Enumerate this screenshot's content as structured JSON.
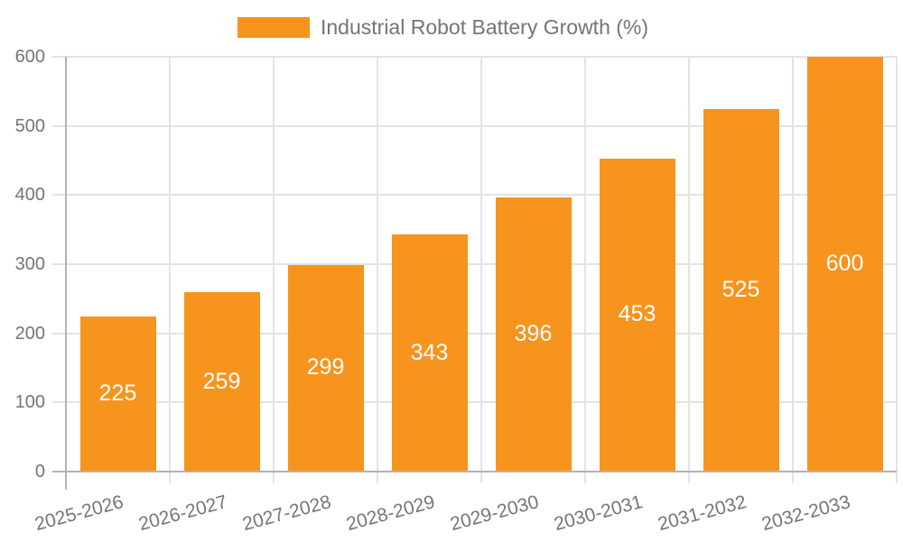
{
  "chart_data": {
    "type": "bar",
    "title": "Industrial Robot Battery Growth (%)",
    "legend": {
      "label": "Industrial Robot Battery Growth (%)",
      "position": "top"
    },
    "categories": [
      "2025-2026",
      "2026-2027",
      "2027-2028",
      "2028-2029",
      "2029-2030",
      "2030-2031",
      "2031-2032",
      "2032-2033"
    ],
    "values": [
      225,
      259,
      299,
      343,
      396,
      453,
      525,
      600
    ],
    "value_labels_shown": true,
    "xlabel": "",
    "ylabel": "",
    "ylim": [
      0,
      600
    ],
    "yticks": [
      0,
      100,
      200,
      300,
      400,
      500,
      600
    ],
    "grid": "horizontal-and-vertical",
    "colors": {
      "bar": "#F7941E",
      "value_label": "#ffffff",
      "axis_text": "#757575",
      "axis_line": "#b3b3b3",
      "gridline": "#e3e3e3",
      "background": "#ffffff"
    }
  }
}
